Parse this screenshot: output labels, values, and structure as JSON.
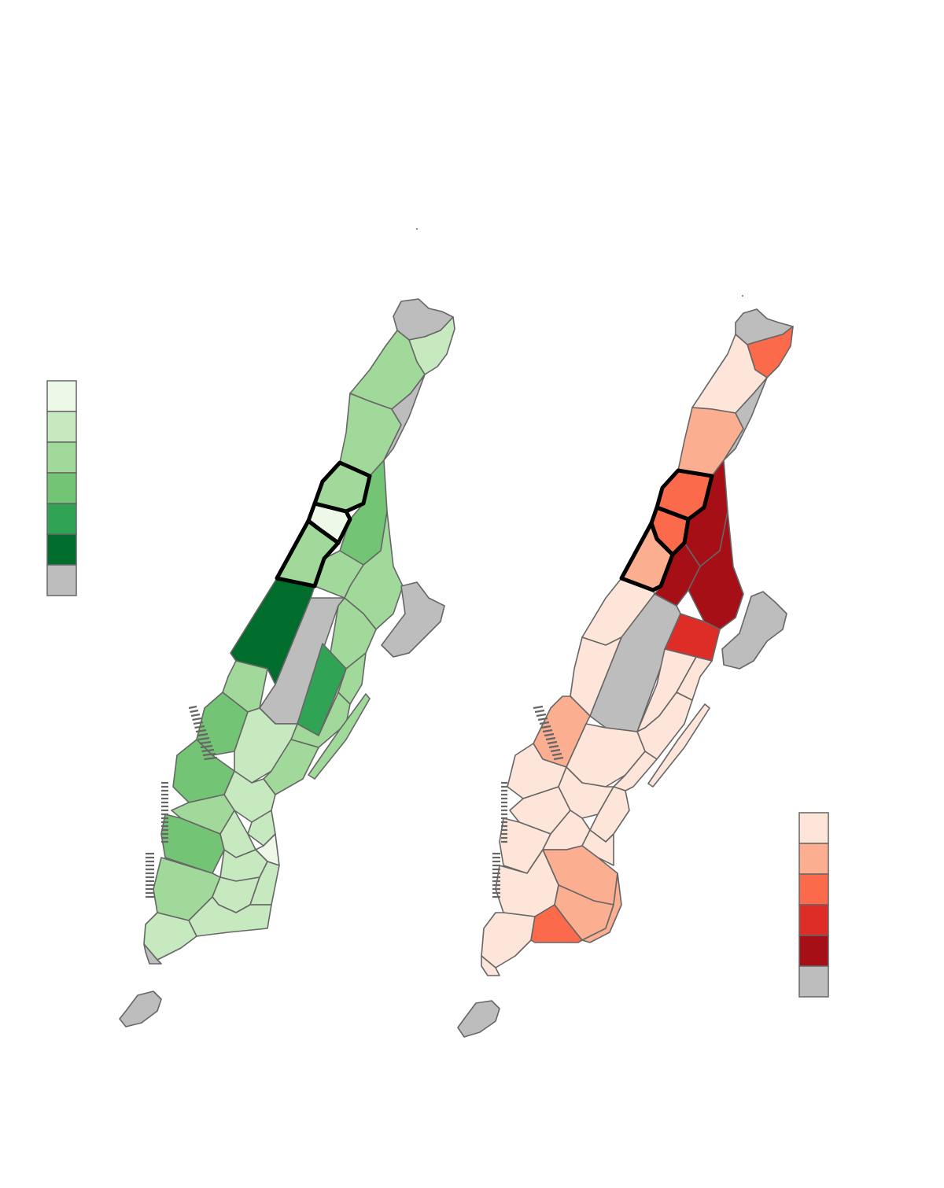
{
  "maps": [
    {
      "name": "green-map",
      "palette_name": "Greens",
      "legend_colors": [
        "#edf8e9",
        "#c7e9c0",
        "#a1d99b",
        "#74c476",
        "#31a354",
        "#006d2c",
        "#bdbdbd"
      ],
      "nodata_color": "#bdbdbd"
    },
    {
      "name": "red-map",
      "palette_name": "Reds",
      "legend_colors": [
        "#fee5d9",
        "#fcae91",
        "#fb6a4a",
        "#de2d26",
        "#a50f15",
        "#bdbdbd"
      ],
      "nodata_color": "#bdbdbd"
    }
  ],
  "colors": {
    "outline": "#666666",
    "highlight": "#000000",
    "park": "#bdbdbd",
    "background": "#ffffff"
  }
}
